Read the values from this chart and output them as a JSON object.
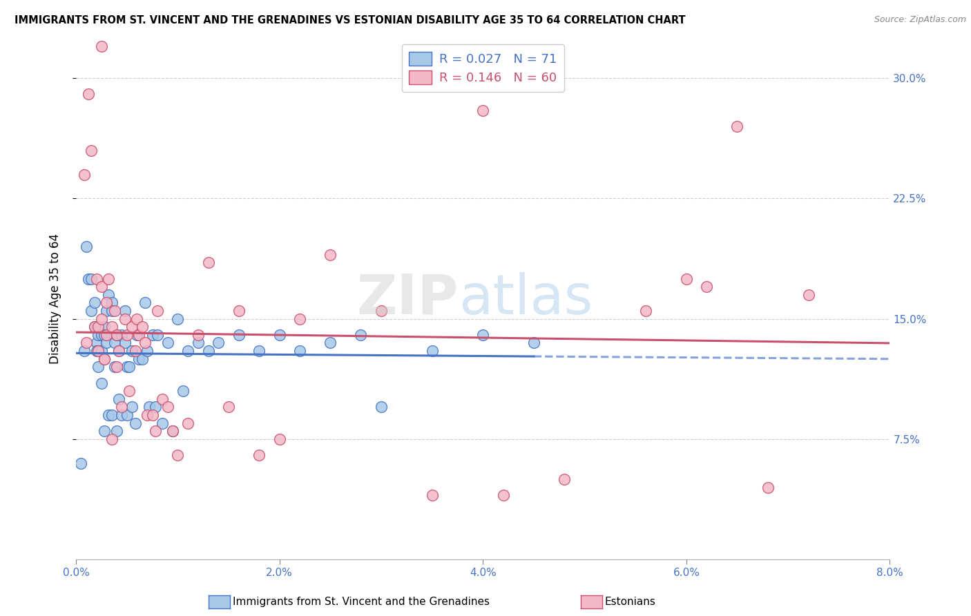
{
  "title": "IMMIGRANTS FROM ST. VINCENT AND THE GRENADINES VS ESTONIAN DISABILITY AGE 35 TO 64 CORRELATION CHART",
  "source": "Source: ZipAtlas.com",
  "ylabel": "Disability Age 35 to 64",
  "xlim": [
    0.0,
    0.08
  ],
  "ylim": [
    0.0,
    0.32
  ],
  "xticks": [
    0.0,
    0.02,
    0.04,
    0.06,
    0.08
  ],
  "yticks": [
    0.075,
    0.15,
    0.225,
    0.3
  ],
  "ytick_labels": [
    "7.5%",
    "15.0%",
    "22.5%",
    "30.0%"
  ],
  "xtick_labels": [
    "0.0%",
    "2.0%",
    "4.0%",
    "6.0%",
    "8.0%"
  ],
  "blue_R": 0.027,
  "blue_N": 71,
  "pink_R": 0.146,
  "pink_N": 60,
  "blue_color": "#a8c8e8",
  "pink_color": "#f4b8c8",
  "blue_edge_color": "#4472c4",
  "pink_edge_color": "#c9506b",
  "blue_line_color": "#4472c4",
  "pink_line_color": "#c9506b",
  "legend_label_blue": "Immigrants from St. Vincent and the Grenadines",
  "legend_label_pink": "Estonians",
  "blue_points_x": [
    0.0008,
    0.001,
    0.0012,
    0.0015,
    0.0015,
    0.0018,
    0.0018,
    0.002,
    0.002,
    0.002,
    0.0022,
    0.0022,
    0.0022,
    0.0025,
    0.0025,
    0.0025,
    0.0028,
    0.0028,
    0.0028,
    0.003,
    0.003,
    0.0032,
    0.0032,
    0.0035,
    0.0035,
    0.0035,
    0.0038,
    0.0038,
    0.004,
    0.004,
    0.0042,
    0.0042,
    0.0045,
    0.0045,
    0.0048,
    0.0048,
    0.005,
    0.005,
    0.0052,
    0.0055,
    0.0055,
    0.0058,
    0.006,
    0.0062,
    0.0065,
    0.0068,
    0.007,
    0.0072,
    0.0075,
    0.0078,
    0.008,
    0.0085,
    0.009,
    0.0095,
    0.01,
    0.0105,
    0.011,
    0.012,
    0.013,
    0.014,
    0.016,
    0.018,
    0.02,
    0.022,
    0.025,
    0.028,
    0.03,
    0.035,
    0.04,
    0.045,
    0.0005
  ],
  "blue_points_y": [
    0.13,
    0.195,
    0.175,
    0.155,
    0.175,
    0.16,
    0.145,
    0.135,
    0.145,
    0.13,
    0.14,
    0.13,
    0.12,
    0.14,
    0.13,
    0.11,
    0.145,
    0.14,
    0.08,
    0.135,
    0.155,
    0.09,
    0.165,
    0.16,
    0.155,
    0.09,
    0.135,
    0.12,
    0.14,
    0.08,
    0.13,
    0.1,
    0.14,
    0.09,
    0.155,
    0.135,
    0.12,
    0.09,
    0.12,
    0.095,
    0.13,
    0.085,
    0.14,
    0.125,
    0.125,
    0.16,
    0.13,
    0.095,
    0.14,
    0.095,
    0.14,
    0.085,
    0.135,
    0.08,
    0.15,
    0.105,
    0.13,
    0.135,
    0.13,
    0.135,
    0.14,
    0.13,
    0.14,
    0.13,
    0.135,
    0.14,
    0.095,
    0.13,
    0.14,
    0.135,
    0.06
  ],
  "pink_points_x": [
    0.0008,
    0.001,
    0.0012,
    0.0015,
    0.0018,
    0.002,
    0.0022,
    0.0022,
    0.0025,
    0.0025,
    0.0028,
    0.0028,
    0.003,
    0.003,
    0.0032,
    0.0035,
    0.0035,
    0.0038,
    0.004,
    0.004,
    0.0042,
    0.0045,
    0.0048,
    0.005,
    0.0052,
    0.0055,
    0.0058,
    0.006,
    0.0062,
    0.0065,
    0.0068,
    0.007,
    0.0075,
    0.0078,
    0.008,
    0.0085,
    0.009,
    0.0095,
    0.01,
    0.011,
    0.012,
    0.013,
    0.015,
    0.016,
    0.018,
    0.02,
    0.022,
    0.025,
    0.03,
    0.035,
    0.0025,
    0.042,
    0.048,
    0.056,
    0.062,
    0.065,
    0.068,
    0.04,
    0.06,
    0.072
  ],
  "pink_points_y": [
    0.24,
    0.135,
    0.29,
    0.255,
    0.145,
    0.175,
    0.145,
    0.13,
    0.17,
    0.15,
    0.125,
    0.125,
    0.16,
    0.14,
    0.175,
    0.145,
    0.075,
    0.155,
    0.14,
    0.12,
    0.13,
    0.095,
    0.15,
    0.14,
    0.105,
    0.145,
    0.13,
    0.15,
    0.14,
    0.145,
    0.135,
    0.09,
    0.09,
    0.08,
    0.155,
    0.1,
    0.095,
    0.08,
    0.065,
    0.085,
    0.14,
    0.185,
    0.095,
    0.155,
    0.065,
    0.075,
    0.15,
    0.19,
    0.155,
    0.04,
    0.32,
    0.04,
    0.05,
    0.155,
    0.17,
    0.27,
    0.045,
    0.28,
    0.175,
    0.165
  ]
}
